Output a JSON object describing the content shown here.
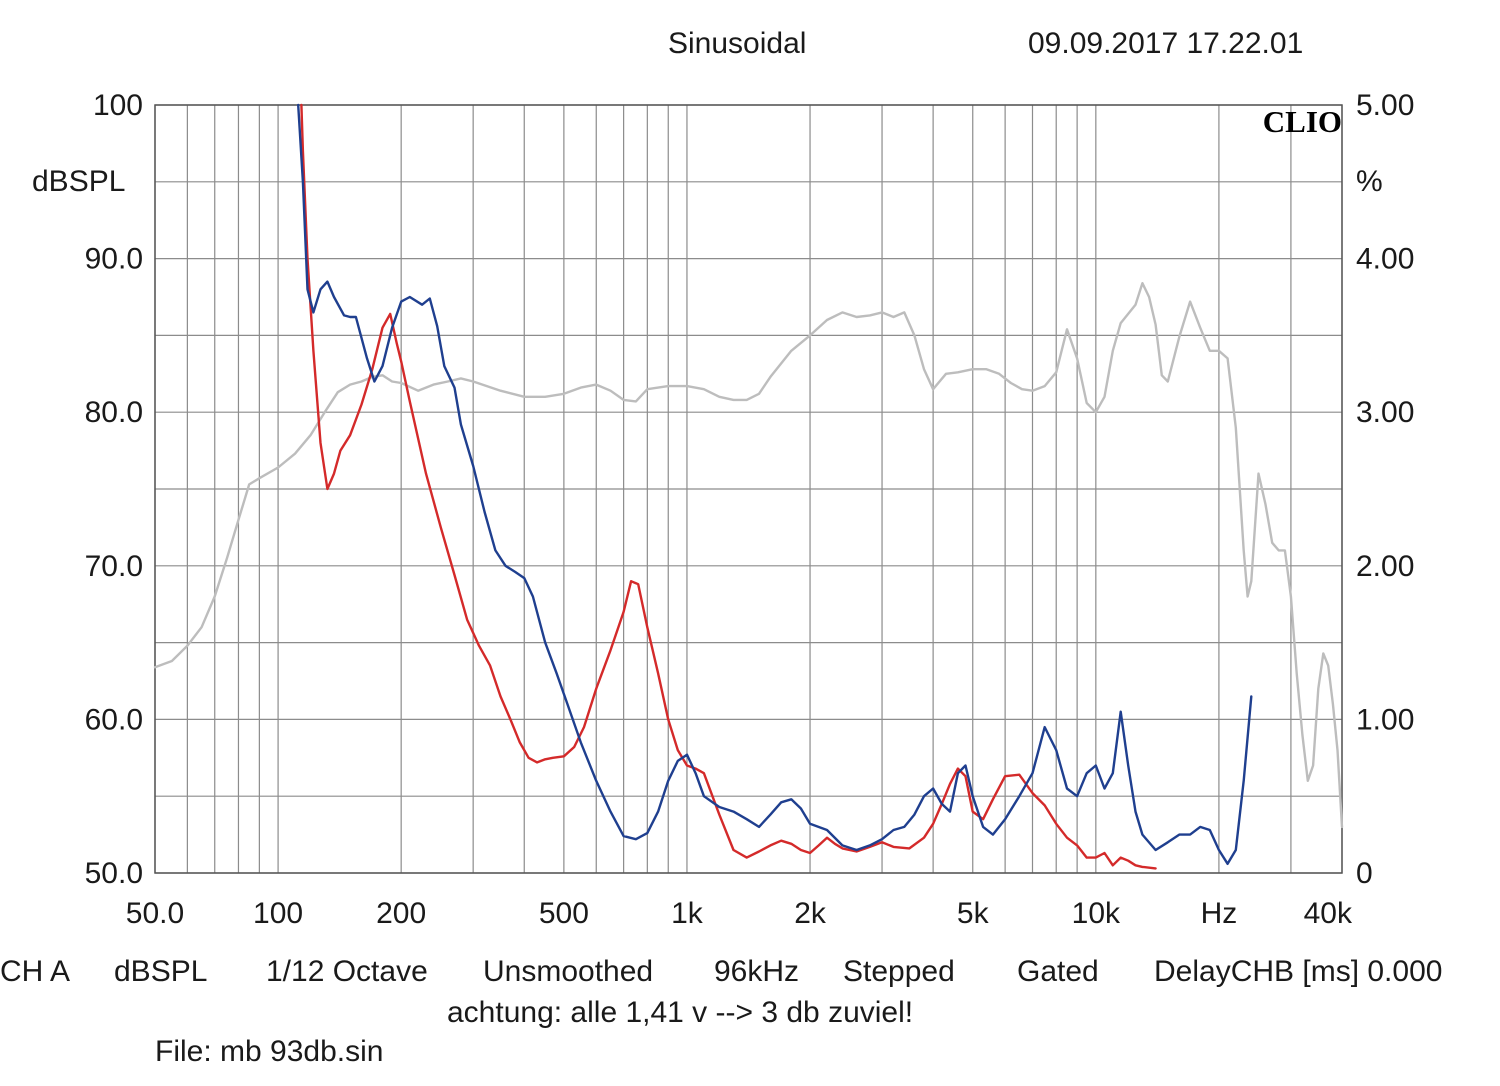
{
  "header": {
    "mode": "Sinusoidal",
    "datetime": "09.09.2017 17.22.01"
  },
  "logo": "CLIO",
  "footer": {
    "channel": "CH A",
    "unit": "dBSPL",
    "smoothing": "1/12 Octave",
    "smoothed": "Unsmoothed",
    "sample_rate": "96kHz",
    "sweep": "Stepped",
    "gating": "Gated",
    "delay": "DelayCHB [ms] 0.000",
    "comment": "achtung: alle 1,41 v --> 3 db zuviel!",
    "file": "File: mb 93db.sin"
  },
  "chart_data": {
    "type": "line",
    "x_scale": "log",
    "xlim": [
      50,
      40000
    ],
    "ylim": [
      50,
      100
    ],
    "y2lim": [
      0,
      5
    ],
    "ylabel": "dBSPL",
    "y2label": "%",
    "grid": true,
    "y_ticks": [
      {
        "value": 100,
        "label": "100"
      },
      {
        "value": 90,
        "label": "90.0"
      },
      {
        "value": 80,
        "label": "80.0"
      },
      {
        "value": 70,
        "label": "70.0"
      },
      {
        "value": 60,
        "label": "60.0"
      },
      {
        "value": 50,
        "label": "50.0"
      }
    ],
    "y2_ticks": [
      {
        "value": 5,
        "label": "5.00"
      },
      {
        "value": 4,
        "label": "4.00"
      },
      {
        "value": 3,
        "label": "3.00"
      },
      {
        "value": 2,
        "label": "2.00"
      },
      {
        "value": 1,
        "label": "1.00"
      },
      {
        "value": 0,
        "label": "0"
      }
    ],
    "x_ticks": [
      {
        "value": 50,
        "label": "50.0"
      },
      {
        "value": 100,
        "label": "100"
      },
      {
        "value": 200,
        "label": "200"
      },
      {
        "value": 500,
        "label": "500"
      },
      {
        "value": 1000,
        "label": "1k"
      },
      {
        "value": 2000,
        "label": "2k"
      },
      {
        "value": 5000,
        "label": "5k"
      },
      {
        "value": 10000,
        "label": "10k"
      },
      {
        "value": 20000,
        "label": "Hz"
      },
      {
        "value": 40000,
        "label": "40k"
      }
    ],
    "series": [
      {
        "color": "#bdbdbd",
        "axis": "left",
        "points": [
          [
            50,
            63.4
          ],
          [
            55,
            63.8
          ],
          [
            60,
            64.8
          ],
          [
            65,
            66
          ],
          [
            70,
            68
          ],
          [
            75,
            70.5
          ],
          [
            80,
            73
          ],
          [
            85,
            75.3
          ],
          [
            90,
            75.7
          ],
          [
            100,
            76.4
          ],
          [
            110,
            77.3
          ],
          [
            120,
            78.5
          ],
          [
            130,
            80
          ],
          [
            140,
            81.3
          ],
          [
            150,
            81.8
          ],
          [
            160,
            82
          ],
          [
            170,
            82.3
          ],
          [
            180,
            82.4
          ],
          [
            190,
            82
          ],
          [
            200,
            81.9
          ],
          [
            220,
            81.4
          ],
          [
            240,
            81.8
          ],
          [
            260,
            82
          ],
          [
            280,
            82.2
          ],
          [
            300,
            82
          ],
          [
            350,
            81.4
          ],
          [
            400,
            81
          ],
          [
            450,
            81
          ],
          [
            500,
            81.2
          ],
          [
            550,
            81.6
          ],
          [
            600,
            81.8
          ],
          [
            650,
            81.4
          ],
          [
            700,
            80.8
          ],
          [
            750,
            80.7
          ],
          [
            800,
            81.5
          ],
          [
            900,
            81.7
          ],
          [
            1000,
            81.7
          ],
          [
            1100,
            81.5
          ],
          [
            1200,
            81
          ],
          [
            1300,
            80.8
          ],
          [
            1400,
            80.8
          ],
          [
            1500,
            81.2
          ],
          [
            1600,
            82.3
          ],
          [
            1800,
            84
          ],
          [
            2000,
            85
          ],
          [
            2200,
            86
          ],
          [
            2400,
            86.5
          ],
          [
            2600,
            86.2
          ],
          [
            2800,
            86.3
          ],
          [
            3000,
            86.5
          ],
          [
            3200,
            86.2
          ],
          [
            3400,
            86.5
          ],
          [
            3600,
            85
          ],
          [
            3800,
            82.8
          ],
          [
            4000,
            81.5
          ],
          [
            4300,
            82.5
          ],
          [
            4600,
            82.6
          ],
          [
            5000,
            82.8
          ],
          [
            5400,
            82.8
          ],
          [
            5800,
            82.5
          ],
          [
            6200,
            81.9
          ],
          [
            6600,
            81.5
          ],
          [
            7000,
            81.4
          ],
          [
            7500,
            81.7
          ],
          [
            8000,
            82.6
          ],
          [
            8500,
            85.4
          ],
          [
            9000,
            83.5
          ],
          [
            9500,
            80.6
          ],
          [
            10000,
            80
          ],
          [
            10500,
            81
          ],
          [
            11000,
            84
          ],
          [
            11500,
            85.8
          ],
          [
            12500,
            87
          ],
          [
            13000,
            88.4
          ],
          [
            13500,
            87.5
          ],
          [
            14000,
            85.7
          ],
          [
            14500,
            82.4
          ],
          [
            15000,
            82
          ],
          [
            16000,
            84.9
          ],
          [
            17000,
            87.2
          ],
          [
            18000,
            85.5
          ],
          [
            19000,
            84
          ],
          [
            20000,
            84
          ],
          [
            21000,
            83.5
          ],
          [
            22000,
            79
          ],
          [
            23000,
            71
          ],
          [
            23500,
            68
          ],
          [
            24000,
            69
          ],
          [
            25000,
            76
          ],
          [
            26000,
            74
          ],
          [
            27000,
            71.5
          ],
          [
            28000,
            71
          ],
          [
            29000,
            71
          ],
          [
            30000,
            68
          ],
          [
            31000,
            63
          ],
          [
            32000,
            59
          ],
          [
            33000,
            56
          ],
          [
            34000,
            57
          ],
          [
            35000,
            62
          ],
          [
            36000,
            64.3
          ],
          [
            37000,
            63.5
          ],
          [
            38000,
            61
          ],
          [
            39000,
            58
          ],
          [
            40000,
            53
          ]
        ]
      },
      {
        "color": "#d42a2a",
        "axis": "left",
        "points": [
          [
            114,
            100
          ],
          [
            115,
            97
          ],
          [
            118,
            90
          ],
          [
            122,
            84
          ],
          [
            127,
            78
          ],
          [
            132,
            75
          ],
          [
            137,
            76
          ],
          [
            142,
            77.5
          ],
          [
            150,
            78.5
          ],
          [
            160,
            80.5
          ],
          [
            170,
            82.8
          ],
          [
            180,
            85.5
          ],
          [
            188,
            86.4
          ],
          [
            195,
            84.5
          ],
          [
            200,
            83.3
          ],
          [
            210,
            80.7
          ],
          [
            230,
            76
          ],
          [
            250,
            72.5
          ],
          [
            270,
            69.4
          ],
          [
            290,
            66.5
          ],
          [
            310,
            64.8
          ],
          [
            330,
            63.5
          ],
          [
            350,
            61.5
          ],
          [
            370,
            60
          ],
          [
            390,
            58.5
          ],
          [
            410,
            57.5
          ],
          [
            430,
            57.2
          ],
          [
            450,
            57.4
          ],
          [
            470,
            57.5
          ],
          [
            500,
            57.6
          ],
          [
            530,
            58.2
          ],
          [
            560,
            59.5
          ],
          [
            600,
            62
          ],
          [
            650,
            64.5
          ],
          [
            700,
            67
          ],
          [
            730,
            69
          ],
          [
            760,
            68.8
          ],
          [
            800,
            66
          ],
          [
            850,
            63
          ],
          [
            900,
            60
          ],
          [
            950,
            58
          ],
          [
            1000,
            57
          ],
          [
            1050,
            56.8
          ],
          [
            1100,
            56.5
          ],
          [
            1200,
            53.8
          ],
          [
            1300,
            51.5
          ],
          [
            1400,
            51
          ],
          [
            1500,
            51.4
          ],
          [
            1600,
            51.8
          ],
          [
            1700,
            52.1
          ],
          [
            1800,
            51.9
          ],
          [
            1900,
            51.5
          ],
          [
            2000,
            51.3
          ],
          [
            2100,
            51.8
          ],
          [
            2200,
            52.3
          ],
          [
            2300,
            51.9
          ],
          [
            2400,
            51.6
          ],
          [
            2600,
            51.4
          ],
          [
            2800,
            51.7
          ],
          [
            3000,
            52
          ],
          [
            3200,
            51.7
          ],
          [
            3500,
            51.6
          ],
          [
            3800,
            52.3
          ],
          [
            4000,
            53.2
          ],
          [
            4200,
            54.5
          ],
          [
            4400,
            55.8
          ],
          [
            4600,
            56.8
          ],
          [
            4800,
            56.3
          ],
          [
            5000,
            54
          ],
          [
            5300,
            53.5
          ],
          [
            5600,
            54.8
          ],
          [
            6000,
            56.3
          ],
          [
            6500,
            56.4
          ],
          [
            7000,
            55.2
          ],
          [
            7500,
            54.4
          ],
          [
            8000,
            53.2
          ],
          [
            8500,
            52.3
          ],
          [
            9000,
            51.8
          ],
          [
            9500,
            51
          ],
          [
            10000,
            51
          ],
          [
            10500,
            51.3
          ],
          [
            11000,
            50.5
          ],
          [
            11500,
            51
          ],
          [
            12000,
            50.8
          ],
          [
            12500,
            50.5
          ],
          [
            13000,
            50.4
          ],
          [
            14000,
            50.3
          ]
        ]
      },
      {
        "color": "#1f3f8f",
        "axis": "left",
        "points": [
          [
            112,
            100
          ],
          [
            115,
            95
          ],
          [
            118,
            88
          ],
          [
            122,
            86.5
          ],
          [
            127,
            88
          ],
          [
            132,
            88.5
          ],
          [
            137,
            87.5
          ],
          [
            145,
            86.3
          ],
          [
            150,
            86.2
          ],
          [
            155,
            86.2
          ],
          [
            165,
            83.5
          ],
          [
            172,
            82
          ],
          [
            180,
            83
          ],
          [
            190,
            85.5
          ],
          [
            200,
            87.2
          ],
          [
            210,
            87.5
          ],
          [
            225,
            87
          ],
          [
            235,
            87.4
          ],
          [
            245,
            85.6
          ],
          [
            255,
            83
          ],
          [
            270,
            81.6
          ],
          [
            280,
            79.2
          ],
          [
            300,
            76.5
          ],
          [
            320,
            73.5
          ],
          [
            340,
            71
          ],
          [
            360,
            70
          ],
          [
            380,
            69.6
          ],
          [
            400,
            69.2
          ],
          [
            420,
            68
          ],
          [
            450,
            65
          ],
          [
            480,
            63
          ],
          [
            510,
            61
          ],
          [
            550,
            58.5
          ],
          [
            600,
            56
          ],
          [
            650,
            54
          ],
          [
            700,
            52.4
          ],
          [
            750,
            52.2
          ],
          [
            800,
            52.6
          ],
          [
            850,
            54
          ],
          [
            900,
            56
          ],
          [
            950,
            57.3
          ],
          [
            1000,
            57.7
          ],
          [
            1050,
            56.5
          ],
          [
            1100,
            55
          ],
          [
            1200,
            54.3
          ],
          [
            1300,
            54
          ],
          [
            1400,
            53.5
          ],
          [
            1500,
            53
          ],
          [
            1600,
            53.8
          ],
          [
            1700,
            54.6
          ],
          [
            1800,
            54.8
          ],
          [
            1900,
            54.2
          ],
          [
            2000,
            53.2
          ],
          [
            2200,
            52.8
          ],
          [
            2400,
            51.8
          ],
          [
            2600,
            51.5
          ],
          [
            2800,
            51.8
          ],
          [
            3000,
            52.2
          ],
          [
            3200,
            52.8
          ],
          [
            3400,
            53
          ],
          [
            3600,
            53.8
          ],
          [
            3800,
            55
          ],
          [
            4000,
            55.5
          ],
          [
            4200,
            54.5
          ],
          [
            4400,
            54
          ],
          [
            4600,
            56.5
          ],
          [
            4800,
            57
          ],
          [
            5000,
            55
          ],
          [
            5300,
            53
          ],
          [
            5600,
            52.5
          ],
          [
            6000,
            53.5
          ],
          [
            6500,
            55
          ],
          [
            7000,
            56.5
          ],
          [
            7500,
            59.5
          ],
          [
            8000,
            58
          ],
          [
            8500,
            55.5
          ],
          [
            9000,
            55
          ],
          [
            9500,
            56.5
          ],
          [
            10000,
            57
          ],
          [
            10500,
            55.5
          ],
          [
            11000,
            56.5
          ],
          [
            11500,
            60.5
          ],
          [
            12000,
            57
          ],
          [
            12500,
            54
          ],
          [
            13000,
            52.5
          ],
          [
            14000,
            51.5
          ],
          [
            15000,
            52
          ],
          [
            16000,
            52.5
          ],
          [
            17000,
            52.5
          ],
          [
            18000,
            53
          ],
          [
            19000,
            52.8
          ],
          [
            20000,
            51.5
          ],
          [
            21000,
            50.6
          ],
          [
            22000,
            51.5
          ],
          [
            23000,
            56
          ],
          [
            24000,
            61.5
          ]
        ]
      }
    ]
  }
}
